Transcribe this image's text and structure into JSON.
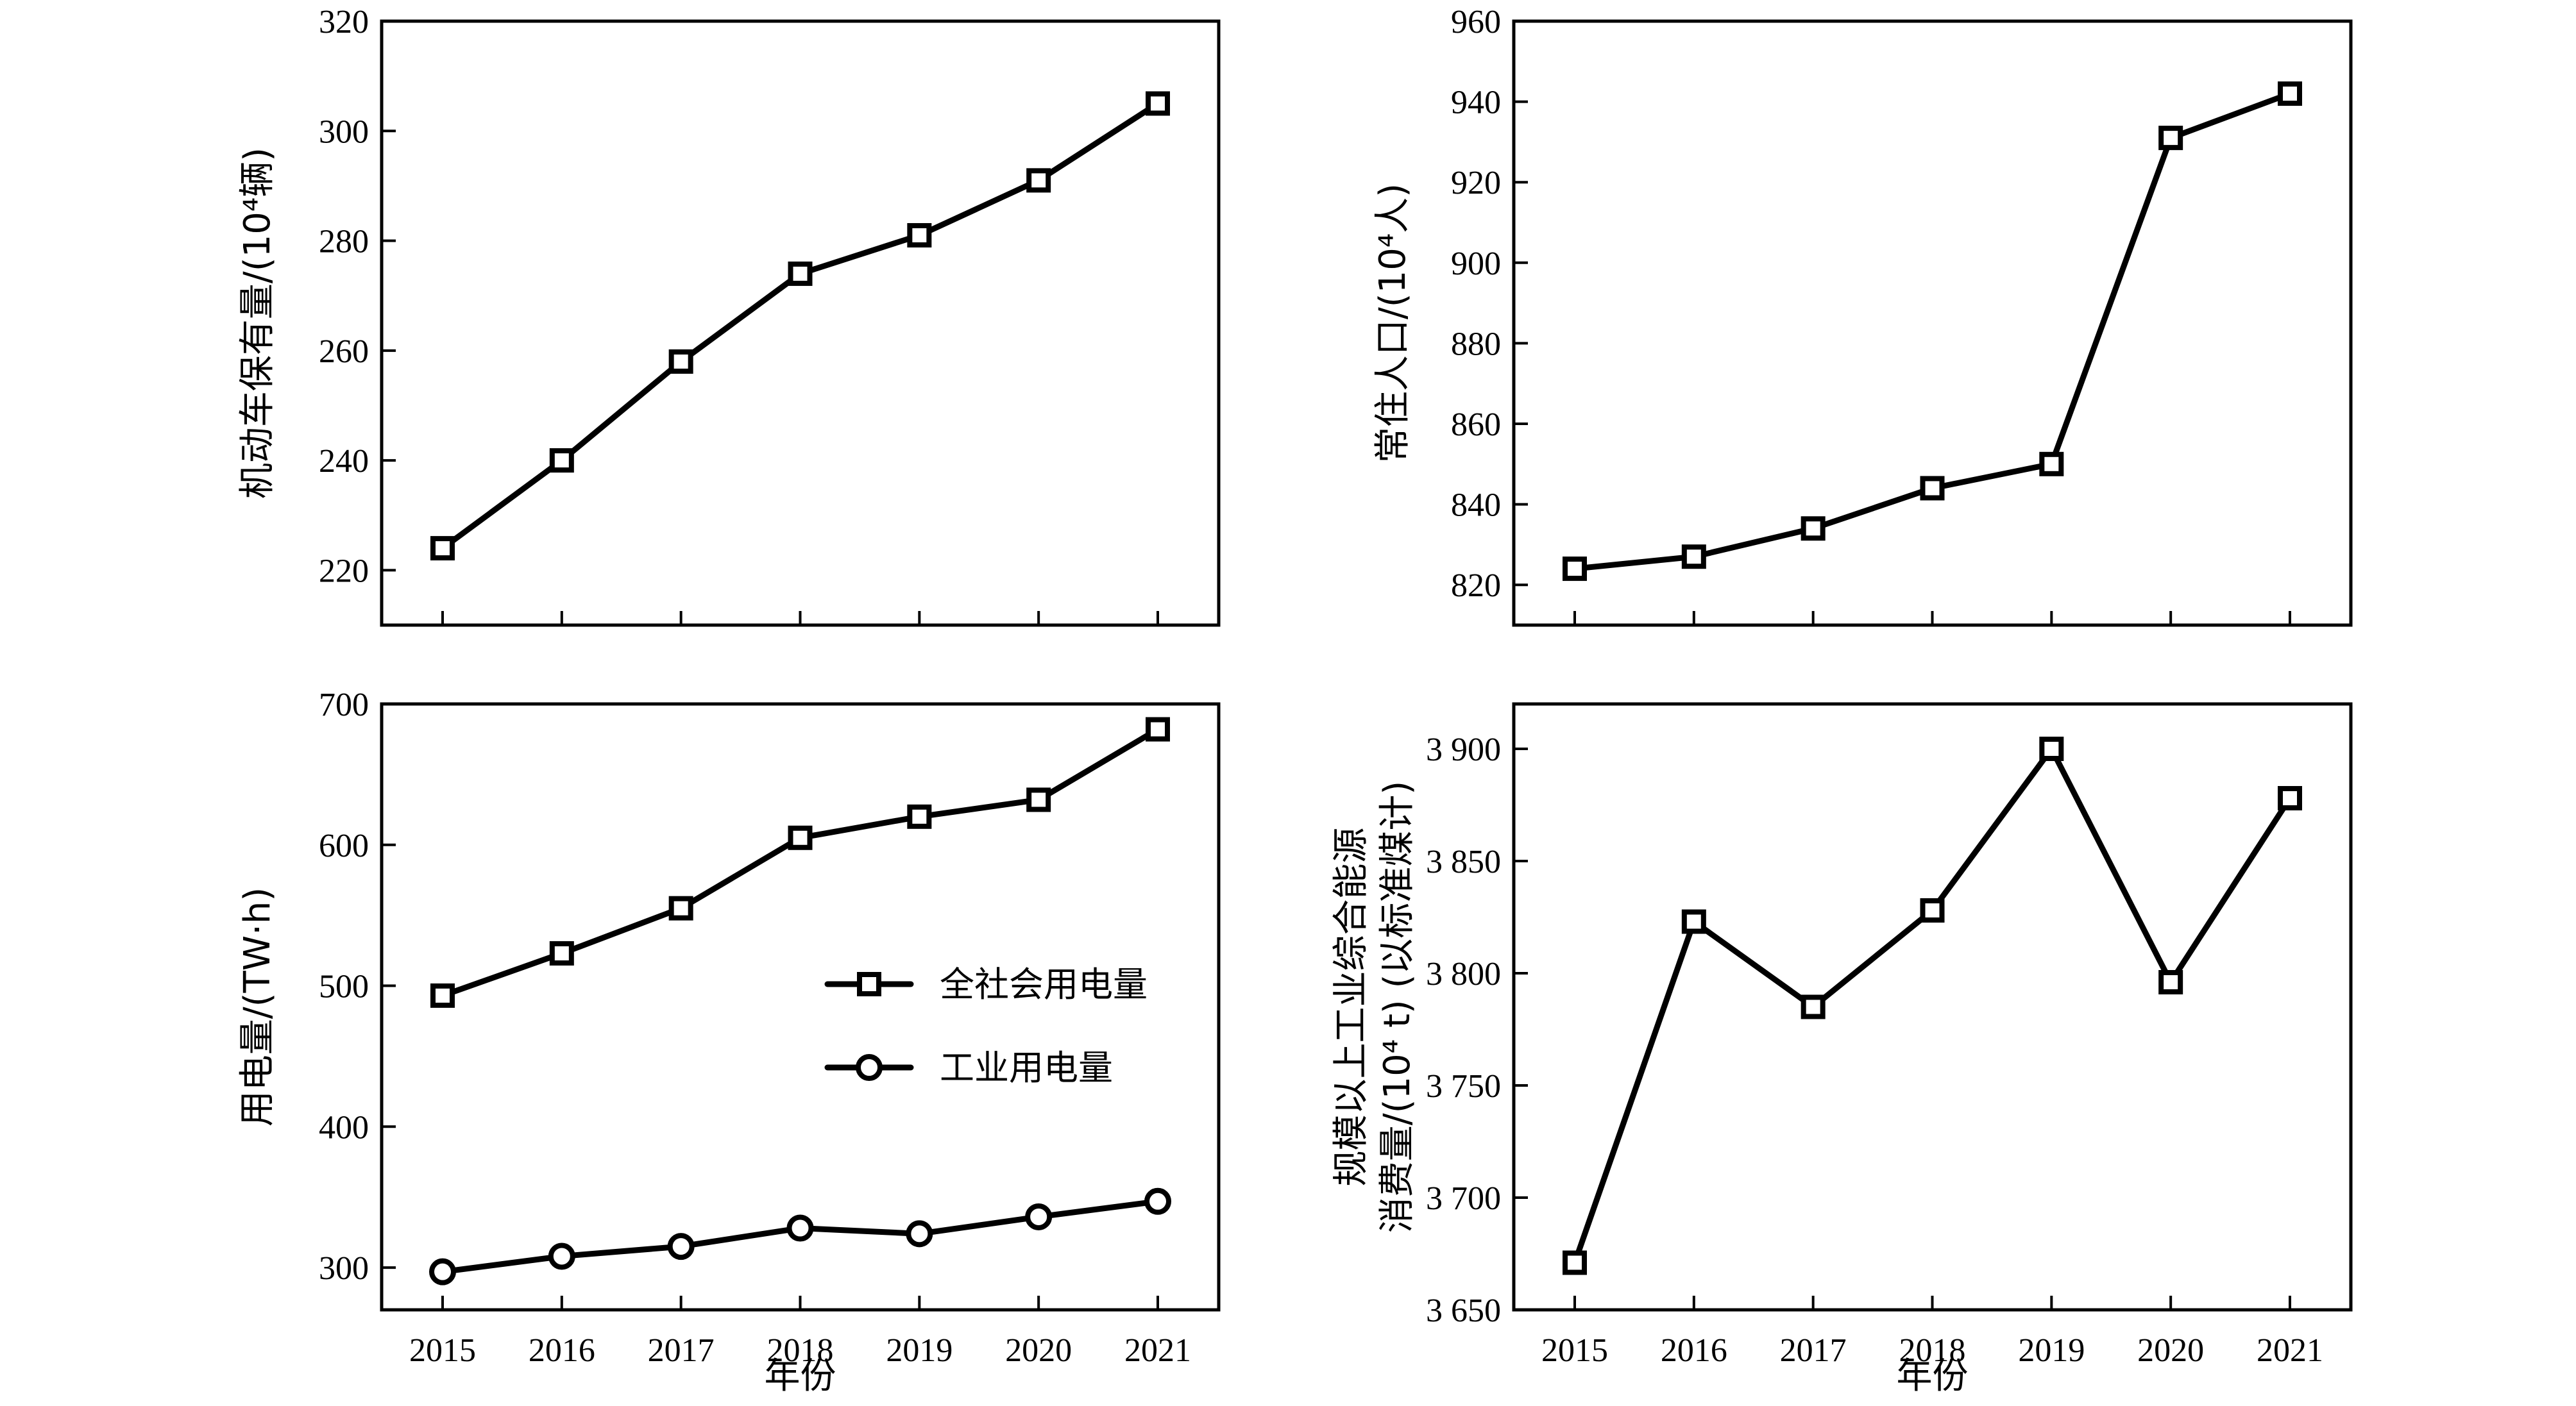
{
  "chart_data": [
    {
      "type": "line",
      "categories": [
        "2015",
        "2016",
        "2017",
        "2018",
        "2019",
        "2020",
        "2021"
      ],
      "series": [
        {
          "values": [
            224,
            240,
            258,
            274,
            281,
            291,
            305
          ],
          "marker": "square"
        }
      ],
      "ylabel": "机动车保有量/(10⁴辆)",
      "xlabel": "",
      "ylim": [
        210,
        320
      ],
      "yticks": [
        220,
        240,
        260,
        280,
        300,
        320
      ],
      "yticklabels": [
        "220",
        "240",
        "260",
        "280",
        "300",
        "320"
      ],
      "grid": false
    },
    {
      "type": "line",
      "categories": [
        "2015",
        "2016",
        "2017",
        "2018",
        "2019",
        "2020",
        "2021"
      ],
      "series": [
        {
          "values": [
            824,
            827,
            834,
            844,
            850,
            931,
            942
          ],
          "marker": "square"
        }
      ],
      "ylabel": "常住人口/(10⁴人)",
      "xlabel": "",
      "ylim": [
        810,
        960
      ],
      "yticks": [
        820,
        840,
        860,
        880,
        900,
        920,
        940,
        960
      ],
      "yticklabels": [
        "820",
        "840",
        "860",
        "880",
        "900",
        "920",
        "940",
        "960"
      ],
      "grid": false
    },
    {
      "type": "line",
      "categories": [
        "2015",
        "2016",
        "2017",
        "2018",
        "2019",
        "2020",
        "2021"
      ],
      "series": [
        {
          "name": "全社会用电量",
          "values": [
            493,
            523,
            555,
            605,
            620,
            632,
            682
          ],
          "marker": "square"
        },
        {
          "name": "工业用电量",
          "values": [
            297,
            308,
            315,
            328,
            324,
            336,
            347
          ],
          "marker": "circle"
        }
      ],
      "ylabel": "用电量/(TW·h)",
      "xlabel": "年份",
      "ylim": [
        270,
        700
      ],
      "yticks": [
        300,
        400,
        500,
        600,
        700
      ],
      "yticklabels": [
        "300",
        "400",
        "500",
        "600",
        "700"
      ],
      "legend": "center-right",
      "grid": false
    },
    {
      "type": "line",
      "categories": [
        "2015",
        "2016",
        "2017",
        "2018",
        "2019",
        "2020",
        "2021"
      ],
      "series": [
        {
          "values": [
            3671,
            3823,
            3785,
            3828,
            3900,
            3796,
            3878
          ],
          "marker": "square"
        }
      ],
      "ylabel": [
        "规模以上工业综合能源",
        "消费量/(10⁴ t) (以标准煤计)"
      ],
      "xlabel": "年份",
      "ylim": [
        3650,
        3920
      ],
      "yticks": [
        3650,
        3700,
        3750,
        3800,
        3850,
        3900
      ],
      "yticklabels": [
        "3 650",
        "3 700",
        "3 750",
        "3 800",
        "3 850",
        "3 900"
      ],
      "grid": false
    }
  ]
}
